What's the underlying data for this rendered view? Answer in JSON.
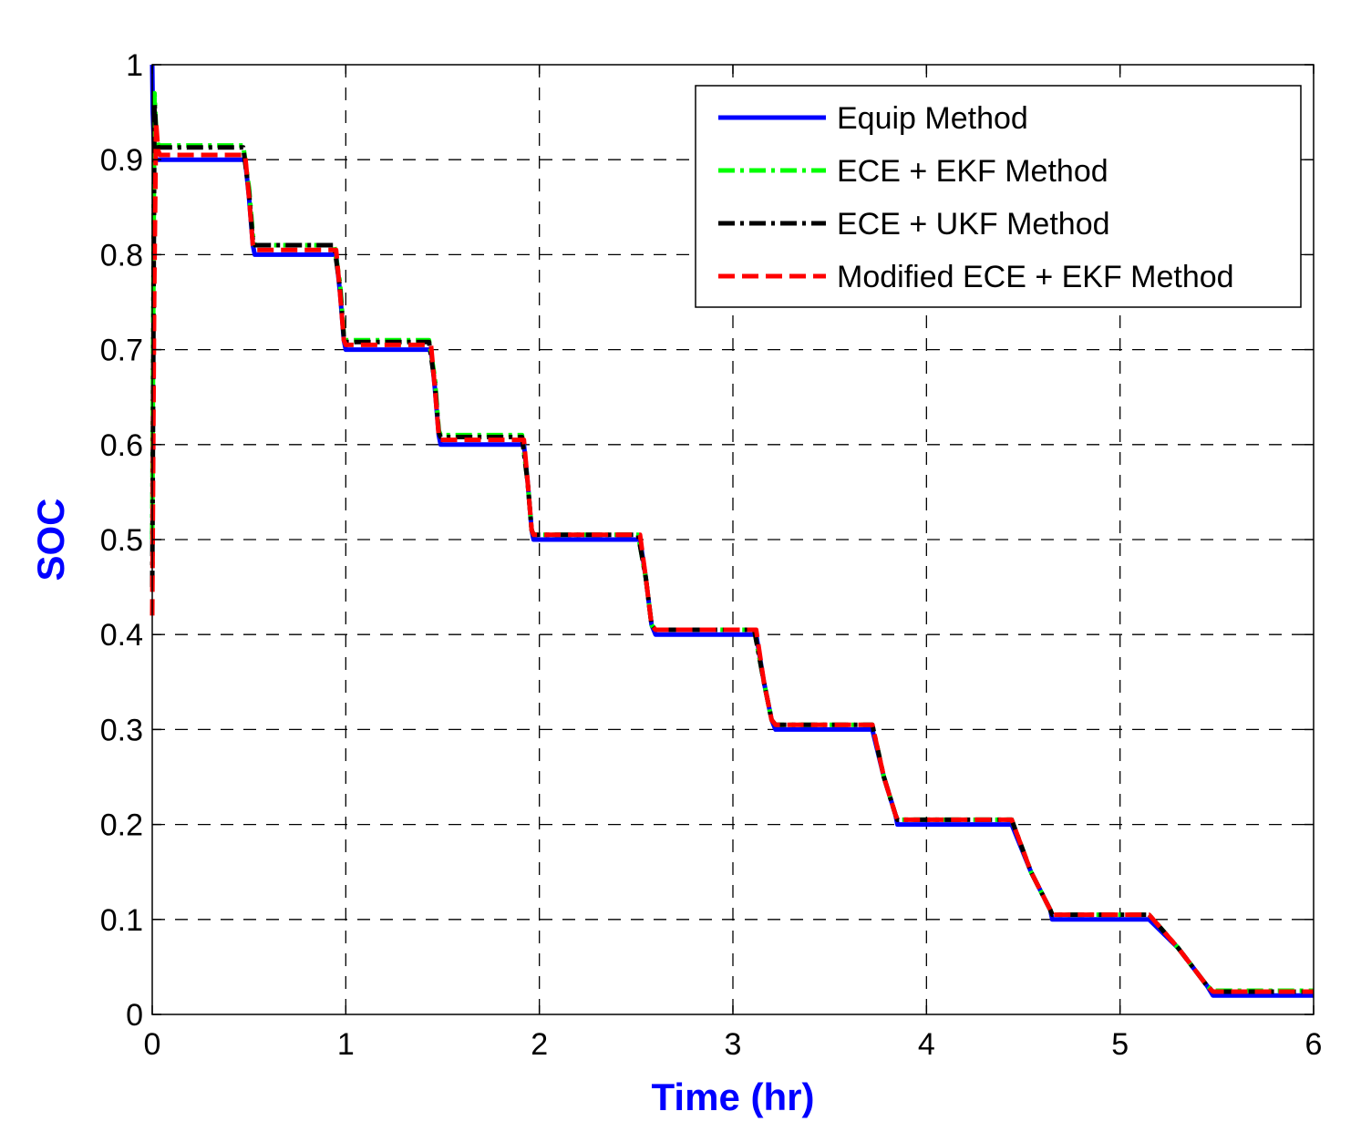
{
  "chart_data": {
    "type": "line",
    "title": "",
    "xlabel": "Time (hr)",
    "ylabel": "SOC",
    "xlim": [
      0,
      6
    ],
    "ylim": [
      0,
      1
    ],
    "xticks": [
      "0",
      "1",
      "2",
      "3",
      "4",
      "5",
      "6"
    ],
    "yticks": [
      "0",
      "0.1",
      "0.2",
      "0.3",
      "0.4",
      "0.5",
      "0.6",
      "0.7",
      "0.8",
      "0.9",
      "1"
    ],
    "grid": true,
    "legend_position": "top-right",
    "series": [
      {
        "name": "Equip Method",
        "color": "#0000ff",
        "style": "solid",
        "x": [
          0,
          0.003,
          0.012,
          0.48,
          0.5,
          0.52,
          0.53,
          0.95,
          0.97,
          0.99,
          1.0,
          1.44,
          1.46,
          1.48,
          1.49,
          1.92,
          1.94,
          1.96,
          1.97,
          2.52,
          2.55,
          2.58,
          2.6,
          3.12,
          3.16,
          3.2,
          3.22,
          3.72,
          3.78,
          3.84,
          3.85,
          4.44,
          4.54,
          4.64,
          4.65,
          5.15,
          5.3,
          5.45,
          5.48,
          6.0
        ],
        "y": [
          1.0,
          0.95,
          0.9,
          0.9,
          0.86,
          0.81,
          0.8,
          0.8,
          0.76,
          0.71,
          0.7,
          0.7,
          0.66,
          0.61,
          0.6,
          0.6,
          0.56,
          0.51,
          0.5,
          0.5,
          0.46,
          0.41,
          0.4,
          0.4,
          0.35,
          0.31,
          0.3,
          0.3,
          0.25,
          0.21,
          0.2,
          0.2,
          0.15,
          0.11,
          0.1,
          0.1,
          0.07,
          0.03,
          0.02,
          0.02
        ]
      },
      {
        "name": "ECE + EKF Method",
        "color": "#00ff00",
        "style": "dashdot",
        "x": [
          0,
          0.008,
          0.012,
          0.02,
          0.03,
          0.47,
          0.5,
          0.52,
          0.53,
          0.94,
          0.97,
          0.99,
          1.0,
          1.43,
          1.46,
          1.48,
          1.49,
          1.91,
          1.94,
          1.96,
          1.97,
          2.51,
          2.55,
          2.58,
          2.6,
          3.11,
          3.16,
          3.2,
          3.22,
          3.72,
          3.78,
          3.84,
          3.85,
          4.44,
          4.54,
          4.64,
          4.65,
          5.15,
          5.3,
          5.45,
          5.48,
          6.0
        ],
        "y": [
          0.5,
          0.85,
          0.97,
          0.93,
          0.915,
          0.915,
          0.87,
          0.82,
          0.81,
          0.81,
          0.77,
          0.715,
          0.71,
          0.71,
          0.67,
          0.615,
          0.61,
          0.61,
          0.56,
          0.51,
          0.505,
          0.505,
          0.46,
          0.41,
          0.405,
          0.405,
          0.35,
          0.31,
          0.305,
          0.305,
          0.25,
          0.21,
          0.205,
          0.205,
          0.15,
          0.11,
          0.105,
          0.105,
          0.07,
          0.03,
          0.025,
          0.025
        ]
      },
      {
        "name": "ECE + UKF Method",
        "color": "#000000",
        "style": "dashdot",
        "x": [
          0,
          0.008,
          0.012,
          0.02,
          0.03,
          0.47,
          0.5,
          0.52,
          0.53,
          0.94,
          0.97,
          0.99,
          1.0,
          1.43,
          1.46,
          1.48,
          1.49,
          1.91,
          1.94,
          1.96,
          1.97,
          2.51,
          2.55,
          2.58,
          2.6,
          3.11,
          3.16,
          3.2,
          3.22,
          3.72,
          3.78,
          3.84,
          3.85,
          4.44,
          4.54,
          4.64,
          4.65,
          5.15,
          5.3,
          5.45,
          5.48,
          6.0
        ],
        "y": [
          0.45,
          0.8,
          0.96,
          0.93,
          0.913,
          0.913,
          0.865,
          0.815,
          0.81,
          0.81,
          0.765,
          0.713,
          0.708,
          0.708,
          0.665,
          0.613,
          0.608,
          0.608,
          0.56,
          0.51,
          0.505,
          0.505,
          0.46,
          0.41,
          0.405,
          0.405,
          0.35,
          0.31,
          0.305,
          0.305,
          0.25,
          0.21,
          0.205,
          0.205,
          0.15,
          0.11,
          0.105,
          0.105,
          0.07,
          0.03,
          0.024,
          0.024
        ]
      },
      {
        "name": "Modified ECE + EKF Method",
        "color": "#ff0000",
        "style": "dashed",
        "x": [
          0,
          0.01,
          0.02,
          0.03,
          0.04,
          0.48,
          0.5,
          0.52,
          0.53,
          0.95,
          0.97,
          0.99,
          1.0,
          1.44,
          1.46,
          1.48,
          1.49,
          1.92,
          1.94,
          1.96,
          1.97,
          2.52,
          2.55,
          2.58,
          2.6,
          3.12,
          3.16,
          3.2,
          3.22,
          3.72,
          3.78,
          3.84,
          3.85,
          4.44,
          4.54,
          4.64,
          4.65,
          5.15,
          5.3,
          5.45,
          5.48,
          6.0
        ],
        "y": [
          0.42,
          0.75,
          0.94,
          0.91,
          0.905,
          0.905,
          0.86,
          0.81,
          0.805,
          0.805,
          0.76,
          0.71,
          0.705,
          0.705,
          0.66,
          0.61,
          0.605,
          0.605,
          0.56,
          0.51,
          0.505,
          0.505,
          0.46,
          0.41,
          0.405,
          0.405,
          0.35,
          0.31,
          0.305,
          0.305,
          0.25,
          0.21,
          0.205,
          0.205,
          0.15,
          0.11,
          0.105,
          0.105,
          0.07,
          0.03,
          0.024,
          0.024
        ]
      }
    ]
  }
}
